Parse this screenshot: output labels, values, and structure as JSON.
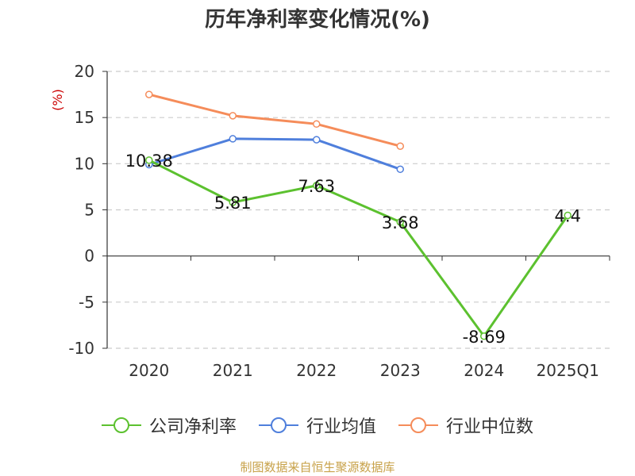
{
  "chart_data": {
    "type": "line",
    "title": "历年净利率变化情况(%)",
    "ylabel": "(%)",
    "categories": [
      "2020",
      "2021",
      "2022",
      "2023",
      "2024",
      "2025Q1"
    ],
    "ylim": [
      -10,
      20
    ],
    "yticks": [
      20,
      15,
      10,
      5,
      0,
      -5,
      -10
    ],
    "grid": true,
    "legend_position": "bottom",
    "series": [
      {
        "name": "公司净利率",
        "color": "#5cc12f",
        "values": [
          10.38,
          5.81,
          7.63,
          3.68,
          -8.69,
          4.4
        ],
        "labels": [
          "10.38",
          "5.81",
          "7.63",
          "3.68",
          "-8.69",
          "4.4"
        ]
      },
      {
        "name": "行业均值",
        "color": "#4f7fdc",
        "values": [
          9.9,
          12.7,
          12.6,
          9.4,
          null,
          null
        ]
      },
      {
        "name": "行业中位数",
        "color": "#f58c5a",
        "values": [
          17.5,
          15.2,
          14.3,
          11.9,
          null,
          null
        ]
      }
    ]
  },
  "source": "制图数据来自恒生聚源数据库"
}
